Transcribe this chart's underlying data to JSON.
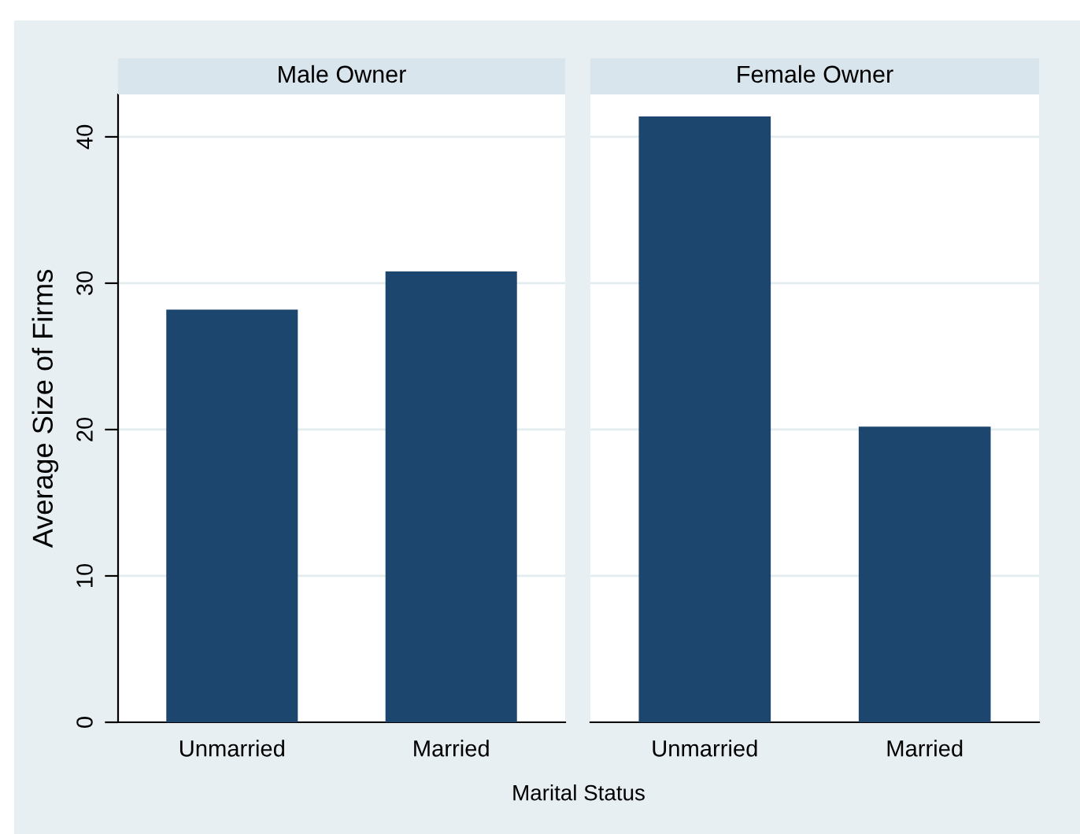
{
  "chart_data": [
    {
      "type": "bar",
      "title": "Male Owner",
      "ylabel": "Average Size of Firms",
      "xlabel": "Marital Status",
      "categories": [
        "Unmarried",
        "Married"
      ],
      "values": [
        28.2,
        30.8
      ],
      "color": "#1c466e",
      "ylim": [
        0,
        42.9
      ],
      "yticks": [
        0,
        10,
        20,
        30,
        40
      ],
      "grid": "y"
    },
    {
      "type": "bar",
      "title": "Female Owner",
      "categories": [
        "Unmarried",
        "Married"
      ],
      "values": [
        41.4,
        20.2
      ],
      "color": "#1c466e",
      "ylim": [
        0,
        42.9
      ],
      "yticks": [
        0,
        10,
        20,
        30,
        40
      ],
      "grid": "y",
      "tick_labels": "x"
    }
  ]
}
